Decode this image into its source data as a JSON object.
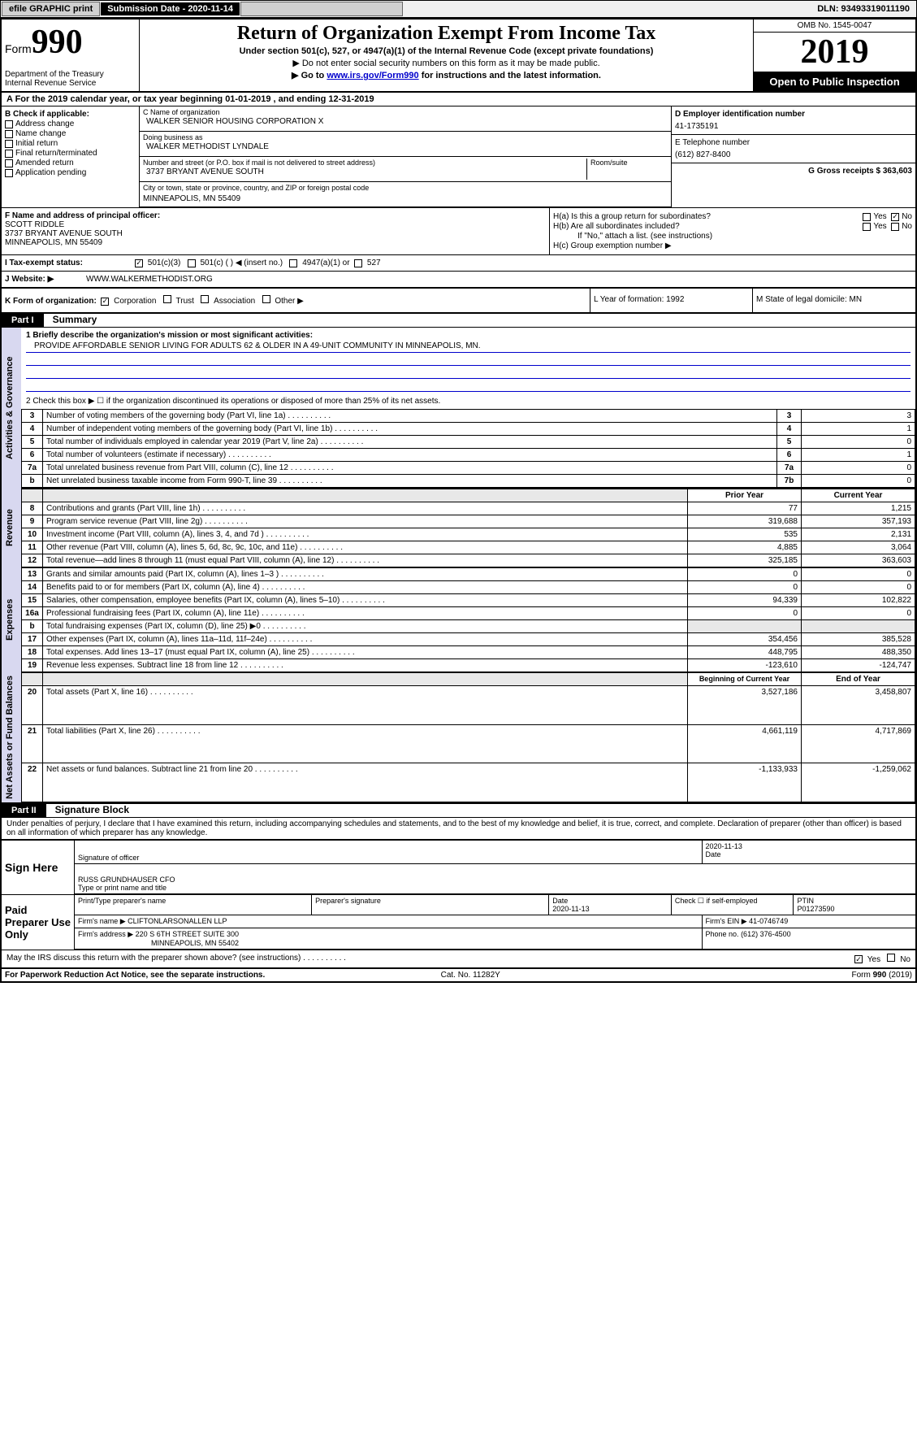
{
  "topbar": {
    "efile": "efile GRAPHIC print",
    "submission_label": "Submission Date - 2020-11-14",
    "dln": "DLN: 93493319011190"
  },
  "header": {
    "form_label": "Form",
    "form_number": "990",
    "dept": "Department of the Treasury\nInternal Revenue Service",
    "title": "Return of Organization Exempt From Income Tax",
    "sub1": "Under section 501(c), 527, or 4947(a)(1) of the Internal Revenue Code (except private foundations)",
    "sub2": "▶ Do not enter social security numbers on this form as it may be made public.",
    "sub3_pre": "▶ Go to ",
    "sub3_link": "www.irs.gov/Form990",
    "sub3_post": " for instructions and the latest information.",
    "omb": "OMB No. 1545-0047",
    "year": "2019",
    "open": "Open to Public Inspection"
  },
  "row_a": "A For the 2019 calendar year, or tax year beginning 01-01-2019   , and ending 12-31-2019",
  "section_b": {
    "label": "B Check if applicable:",
    "opts": [
      "Address change",
      "Name change",
      "Initial return",
      "Final return/terminated",
      "Amended return",
      "Application pending"
    ]
  },
  "section_c": {
    "name_label": "C Name of organization",
    "name": "WALKER SENIOR HOUSING CORPORATION X",
    "dba_label": "Doing business as",
    "dba": "WALKER METHODIST LYNDALE",
    "street_label": "Number and street (or P.O. box if mail is not delivered to street address)",
    "street": "3737 BRYANT AVENUE SOUTH",
    "room_label": "Room/suite",
    "city_label": "City or town, state or province, country, and ZIP or foreign postal code",
    "city": "MINNEAPOLIS, MN  55409"
  },
  "section_d": {
    "label": "D Employer identification number",
    "value": "41-1735191"
  },
  "section_e": {
    "label": "E Telephone number",
    "value": "(612) 827-8400"
  },
  "section_g": {
    "label": "G Gross receipts $ 363,603"
  },
  "section_f": {
    "label": "F  Name and address of principal officer:",
    "name": "SCOTT RIDDLE",
    "street": "3737 BRYANT AVENUE SOUTH",
    "city": "MINNEAPOLIS, MN  55409"
  },
  "section_h": {
    "ha": "H(a)  Is this a group return for subordinates?",
    "ha_no_checked": true,
    "hb": "H(b)  Are all subordinates included?",
    "hb_note": "If \"No,\" attach a list. (see instructions)",
    "hc": "H(c)  Group exemption number ▶"
  },
  "section_i": {
    "label": "I  Tax-exempt status:",
    "c3": "501(c)(3)",
    "c": "501(c) (   ) ◀ (insert no.)",
    "a1": "4947(a)(1) or",
    "527": "527"
  },
  "section_j": {
    "label": "J   Website: ▶",
    "value": "WWW.WALKERMETHODIST.ORG"
  },
  "section_k": {
    "label": "K Form of organization:",
    "corp": "Corporation",
    "trust": "Trust",
    "assoc": "Association",
    "other": "Other ▶"
  },
  "section_l": {
    "label": "L Year of formation: 1992"
  },
  "section_m": {
    "label": "M State of legal domicile: MN"
  },
  "part1": {
    "hdr": "Part I",
    "title": "Summary",
    "line1_label": "1  Briefly describe the organization's mission or most significant activities:",
    "line1_value": "PROVIDE AFFORDABLE SENIOR LIVING FOR ADULTS 62 & OLDER IN A 49-UNIT COMMUNITY IN MINNEAPOLIS, MN.",
    "line2": "2   Check this box ▶ ☐  if the organization discontinued its operations or disposed of more than 25% of its net assets.",
    "sections": {
      "governance": "Activities & Governance",
      "revenue": "Revenue",
      "expenses": "Expenses",
      "net": "Net Assets or Fund Balances"
    },
    "gov_rows": [
      {
        "n": "3",
        "t": "Number of voting members of the governing body (Part VI, line 1a)",
        "b": "3",
        "v": "3"
      },
      {
        "n": "4",
        "t": "Number of independent voting members of the governing body (Part VI, line 1b)",
        "b": "4",
        "v": "1"
      },
      {
        "n": "5",
        "t": "Total number of individuals employed in calendar year 2019 (Part V, line 2a)",
        "b": "5",
        "v": "0"
      },
      {
        "n": "6",
        "t": "Total number of volunteers (estimate if necessary)",
        "b": "6",
        "v": "1"
      },
      {
        "n": "7a",
        "t": "Total unrelated business revenue from Part VIII, column (C), line 12",
        "b": "7a",
        "v": "0"
      },
      {
        "n": "b",
        "t": "Net unrelated business taxable income from Form 990-T, line 39",
        "b": "7b",
        "v": "0"
      }
    ],
    "col_prior": "Prior Year",
    "col_current": "Current Year",
    "rev_rows": [
      {
        "n": "8",
        "t": "Contributions and grants (Part VIII, line 1h)",
        "p": "77",
        "c": "1,215"
      },
      {
        "n": "9",
        "t": "Program service revenue (Part VIII, line 2g)",
        "p": "319,688",
        "c": "357,193"
      },
      {
        "n": "10",
        "t": "Investment income (Part VIII, column (A), lines 3, 4, and 7d )",
        "p": "535",
        "c": "2,131"
      },
      {
        "n": "11",
        "t": "Other revenue (Part VIII, column (A), lines 5, 6d, 8c, 9c, 10c, and 11e)",
        "p": "4,885",
        "c": "3,064"
      },
      {
        "n": "12",
        "t": "Total revenue—add lines 8 through 11 (must equal Part VIII, column (A), line 12)",
        "p": "325,185",
        "c": "363,603"
      }
    ],
    "exp_rows": [
      {
        "n": "13",
        "t": "Grants and similar amounts paid (Part IX, column (A), lines 1–3 )",
        "p": "0",
        "c": "0"
      },
      {
        "n": "14",
        "t": "Benefits paid to or for members (Part IX, column (A), line 4)",
        "p": "0",
        "c": "0"
      },
      {
        "n": "15",
        "t": "Salaries, other compensation, employee benefits (Part IX, column (A), lines 5–10)",
        "p": "94,339",
        "c": "102,822"
      },
      {
        "n": "16a",
        "t": "Professional fundraising fees (Part IX, column (A), line 11e)",
        "p": "0",
        "c": "0"
      },
      {
        "n": "b",
        "t": "Total fundraising expenses (Part IX, column (D), line 25) ▶0",
        "p": "",
        "c": ""
      },
      {
        "n": "17",
        "t": "Other expenses (Part IX, column (A), lines 11a–11d, 11f–24e)",
        "p": "354,456",
        "c": "385,528"
      },
      {
        "n": "18",
        "t": "Total expenses. Add lines 13–17 (must equal Part IX, column (A), line 25)",
        "p": "448,795",
        "c": "488,350"
      },
      {
        "n": "19",
        "t": "Revenue less expenses. Subtract line 18 from line 12",
        "p": "-123,610",
        "c": "-124,747"
      }
    ],
    "col_beg": "Beginning of Current Year",
    "col_end": "End of Year",
    "net_rows": [
      {
        "n": "20",
        "t": "Total assets (Part X, line 16)",
        "p": "3,527,186",
        "c": "3,458,807"
      },
      {
        "n": "21",
        "t": "Total liabilities (Part X, line 26)",
        "p": "4,661,119",
        "c": "4,717,869"
      },
      {
        "n": "22",
        "t": "Net assets or fund balances. Subtract line 21 from line 20",
        "p": "-1,133,933",
        "c": "-1,259,062"
      }
    ]
  },
  "part2": {
    "hdr": "Part II",
    "title": "Signature Block",
    "perjury": "Under penalties of perjury, I declare that I have examined this return, including accompanying schedules and statements, and to the best of my knowledge and belief, it is true, correct, and complete. Declaration of preparer (other than officer) is based on all information of which preparer has any knowledge.",
    "sign_here": "Sign Here",
    "sig_officer": "Signature of officer",
    "sig_date": "2020-11-13",
    "date_label": "Date",
    "officer_name": "RUSS GRUNDHAUSER  CFO",
    "officer_label": "Type or print name and title",
    "paid_preparer": "Paid Preparer Use Only",
    "prep_name_label": "Print/Type preparer's name",
    "prep_sig_label": "Preparer's signature",
    "prep_date_label": "Date",
    "prep_date": "2020-11-13",
    "check_self": "Check ☐ if self-employed",
    "ptin_label": "PTIN",
    "ptin": "P01273590",
    "firm_name_label": "Firm's name    ▶",
    "firm_name": "CLIFTONLARSONALLEN LLP",
    "firm_ein_label": "Firm's EIN ▶",
    "firm_ein": "41-0746749",
    "firm_addr_label": "Firm's address ▶",
    "firm_addr": "220 S 6TH STREET SUITE 300",
    "firm_city": "MINNEAPOLIS, MN  55402",
    "firm_phone_label": "Phone no.",
    "firm_phone": "(612) 376-4500",
    "discuss": "May the IRS discuss this return with the preparer shown above? (see instructions)",
    "yes": "Yes",
    "no": "No"
  },
  "footer": {
    "left": "For Paperwork Reduction Act Notice, see the separate instructions.",
    "mid": "Cat. No. 11282Y",
    "right": "Form 990 (2019)"
  }
}
